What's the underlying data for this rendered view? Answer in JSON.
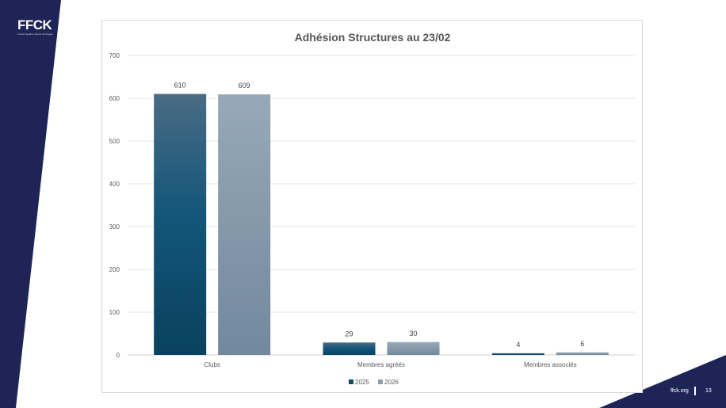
{
  "brand": {
    "logo_text": "FFCK",
    "tagline": "Canoë Kayak & Sports de Pagaie",
    "navy": "#1e2556"
  },
  "footer": {
    "site": "ffck.org",
    "page_number": "13"
  },
  "chart_data": {
    "type": "bar",
    "title": "Adhésion Structures au 23/02",
    "categories": [
      "Clubs",
      "Membres agréés",
      "Membres associés"
    ],
    "series": [
      {
        "name": "2025",
        "values": [
          610,
          29,
          4
        ],
        "color": "#0e4d6e"
      },
      {
        "name": "2026",
        "values": [
          609,
          30,
          6
        ],
        "color": "#8a9fb2"
      }
    ],
    "ylim": [
      0,
      700
    ],
    "yticks": [
      0,
      100,
      200,
      300,
      400,
      500,
      600,
      700
    ],
    "grid": true,
    "legend": "bottom",
    "data_labels": true
  }
}
